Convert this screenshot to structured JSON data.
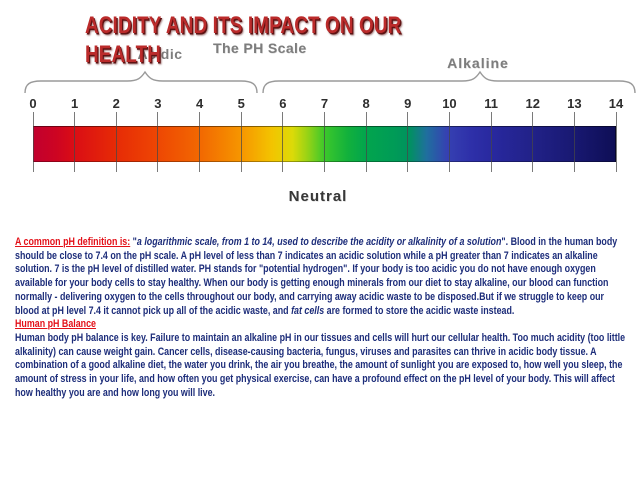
{
  "title": "ACIDITY AND ITS IMPACT ON OUR HEALTH",
  "colors": {
    "title_red": "#bb2b2b",
    "label_gray": "#7d7d7d",
    "body_navy": "#1d2d7a",
    "accent_red": "#e31119",
    "tick_gray": "#464646"
  },
  "scale": {
    "title": "The PH Scale",
    "acid_label": "Acidic",
    "alkaline_label": "Alkaline",
    "neutral_label": "Neutral",
    "ticks": [
      "0",
      "1",
      "2",
      "3",
      "4",
      "5",
      "6",
      "7",
      "8",
      "9",
      "10",
      "11",
      "12",
      "13",
      "14"
    ],
    "gradient_stops": [
      {
        "pos": "0%",
        "color": "#c1002f"
      },
      {
        "pos": "4%",
        "color": "#cd0422"
      },
      {
        "pos": "7%",
        "color": "#da0d15"
      },
      {
        "pos": "14%",
        "color": "#e62a06"
      },
      {
        "pos": "21%",
        "color": "#ee4503"
      },
      {
        "pos": "29%",
        "color": "#f26a01"
      },
      {
        "pos": "36%",
        "color": "#f69800"
      },
      {
        "pos": "41%",
        "color": "#f3c400"
      },
      {
        "pos": "44.5%",
        "color": "#dcda08"
      },
      {
        "pos": "47%",
        "color": "#9ad315"
      },
      {
        "pos": "50%",
        "color": "#3cc82b"
      },
      {
        "pos": "54%",
        "color": "#12b13c"
      },
      {
        "pos": "57%",
        "color": "#02a54d"
      },
      {
        "pos": "62%",
        "color": "#009b57"
      },
      {
        "pos": "64.5%",
        "color": "#00925e"
      },
      {
        "pos": "67.5%",
        "color": "#1f6f9e"
      },
      {
        "pos": "71%",
        "color": "#3641b2"
      },
      {
        "pos": "75%",
        "color": "#2e30a9"
      },
      {
        "pos": "79%",
        "color": "#28289e"
      },
      {
        "pos": "86%",
        "color": "#212187"
      },
      {
        "pos": "93%",
        "color": "#181871"
      },
      {
        "pos": "100%",
        "color": "#0e0e55"
      }
    ]
  },
  "body": {
    "blocks": [
      {
        "segments": [
          {
            "style": "red",
            "text": "A common pH definition is:"
          },
          {
            "style": "plain",
            "text": " \""
          },
          {
            "style": "italic",
            "text": "a logarithmic scale, from 1 to 14, used to describe the acidity or alkalinity of a solution"
          },
          {
            "style": "plain",
            "text": "\". Blood in the human body should be close to 7.4 on the pH scale. A pH level of less than 7 indicates an acidic solution while a pH greater than 7 indicates an alkaline solution. 7 is the pH level of distilled water. PH stands for \"potential hydrogen\". If your body is too acidic you do not have enough oxygen available for your body cells to stay healthy. When our body is getting enough minerals from our diet to stay alkaline, our blood can function normally - delivering oxygen to the cells throughout our body, and carrying away acidic waste to be disposed.But if we struggle to keep our blood at pH level 7.4 it cannot pick up all of the acidic waste, and "
          },
          {
            "style": "italic",
            "text": "fat cells"
          },
          {
            "style": "plain",
            "text": " are formed to store the acidic waste instead."
          }
        ]
      },
      {
        "segments": [
          {
            "style": "red",
            "text": "Human pH Balance"
          }
        ]
      },
      {
        "segments": [
          {
            "style": "plain",
            "text": "Human body pH balance is key. Failure to maintain an alkaline pH in our tissues and cells will hurt our cellular health. Too much acidity (too little alkalinity) can cause weight gain. Cancer cells, disease-causing bacteria, fungus, viruses and parasites can thrive in acidic body tissue. A combination of a good alkaline diet, the water you drink, the air you breathe, the amount of sunlight you are exposed to, how well you sleep, the amount of stress in your life, and how often you get physical exercise, can have a profound effect on the pH level of your body. This will affect how healthy you are and how long you will live."
          }
        ]
      }
    ]
  }
}
